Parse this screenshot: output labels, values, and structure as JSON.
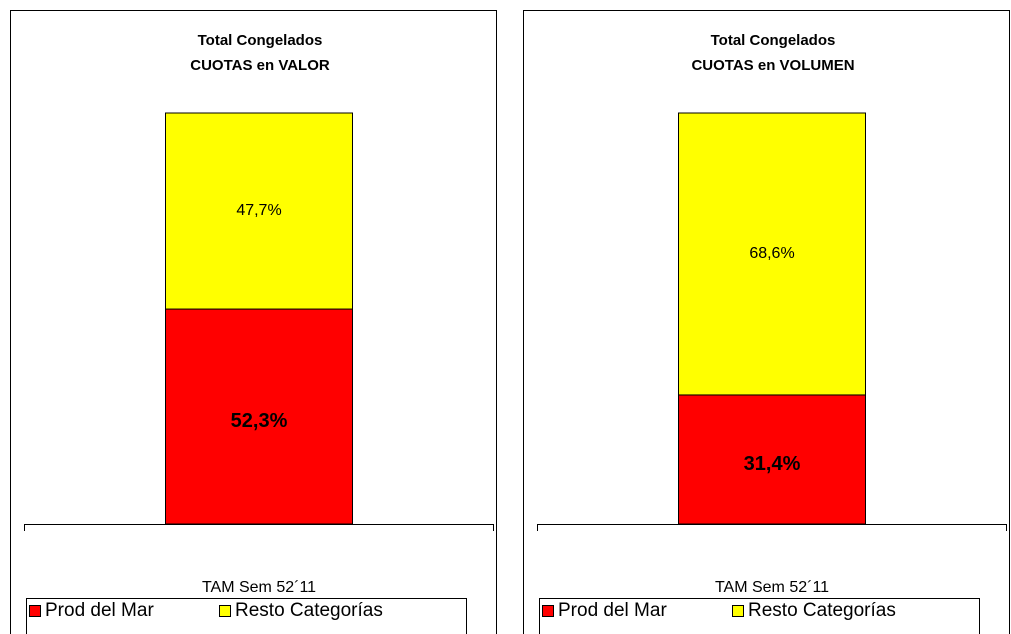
{
  "chart_data": [
    {
      "type": "bar",
      "stacked": true,
      "title": [
        "Total Congelados",
        "CUOTAS en VALOR"
      ],
      "categories": [
        "TAM Sem 52´11"
      ],
      "series": [
        {
          "name": "Prod del Mar",
          "color": "#ff0000",
          "values": [
            52.3
          ],
          "value_labels": [
            "52,3%"
          ]
        },
        {
          "name": "Resto Categorías",
          "color": "#ffff00",
          "values": [
            47.7
          ],
          "value_labels": [
            "47,7%"
          ]
        }
      ],
      "ylim": [
        0,
        100
      ],
      "legend": "bottom"
    },
    {
      "type": "bar",
      "stacked": true,
      "title": [
        "Total Congelados",
        "CUOTAS en VOLUMEN"
      ],
      "categories": [
        "TAM Sem 52´11"
      ],
      "series": [
        {
          "name": "Prod del Mar",
          "color": "#ff0000",
          "values": [
            31.4
          ],
          "value_labels": [
            "31,4%"
          ]
        },
        {
          "name": "Resto Categorías",
          "color": "#ffff00",
          "values": [
            68.6
          ],
          "value_labels": [
            "68,6%"
          ]
        }
      ],
      "ylim": [
        0,
        100
      ],
      "legend": "bottom"
    }
  ]
}
